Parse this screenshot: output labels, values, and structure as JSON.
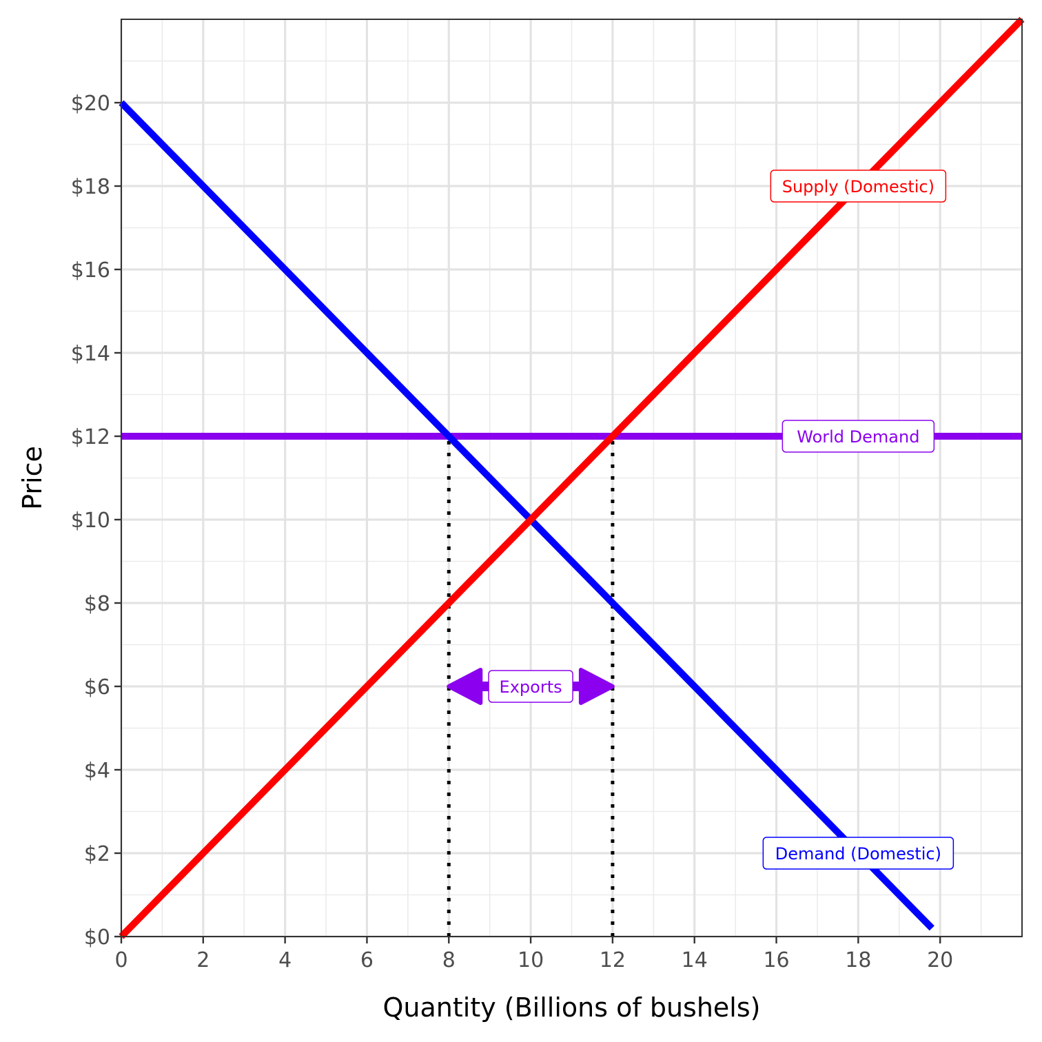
{
  "chart_data": {
    "type": "line",
    "xlabel": "Quantity (Billions of bushels)",
    "ylabel": "Price",
    "xlim": [
      0,
      22
    ],
    "ylim": [
      0,
      22
    ],
    "x_ticks": [
      0,
      2,
      4,
      6,
      8,
      10,
      12,
      14,
      16,
      18,
      20
    ],
    "x_tick_labels": [
      "0",
      "2",
      "4",
      "6",
      "8",
      "10",
      "12",
      "14",
      "16",
      "18",
      "20"
    ],
    "y_ticks": [
      0,
      2,
      4,
      6,
      8,
      10,
      12,
      14,
      16,
      18,
      20
    ],
    "y_tick_labels": [
      "$0",
      "$2",
      "$4",
      "$6",
      "$8",
      "$10",
      "$12",
      "$14",
      "$16",
      "$18",
      "$20"
    ],
    "grid": true,
    "series": [
      {
        "name": "Supply (Domestic)",
        "color": "#ff0000",
        "x": [
          0,
          22
        ],
        "y": [
          0,
          22
        ]
      },
      {
        "name": "Demand (Domestic)",
        "color": "#0000ff",
        "x": [
          0,
          19.8
        ],
        "y": [
          20,
          0.2
        ]
      },
      {
        "name": "World Demand",
        "color": "#8b00ee",
        "x": [
          0,
          22
        ],
        "y": [
          12,
          12
        ]
      }
    ],
    "labels": [
      {
        "text": "Supply (Domestic)",
        "x": 18,
        "y": 18,
        "color": "#ff0000"
      },
      {
        "text": "World Demand",
        "x": 18,
        "y": 12,
        "color": "#8b00ee"
      },
      {
        "text": "Demand (Domestic)",
        "x": 18,
        "y": 2,
        "color": "#0000ff"
      }
    ],
    "reference_lines": [
      {
        "x": 8,
        "y_from": 0,
        "y_to": 12,
        "style": "dotted"
      },
      {
        "x": 12,
        "y_from": 0,
        "y_to": 12,
        "style": "dotted"
      }
    ],
    "annotation": {
      "text": "Exports",
      "x_from": 8,
      "x_to": 12,
      "y": 6,
      "color": "#8b00ee"
    }
  }
}
